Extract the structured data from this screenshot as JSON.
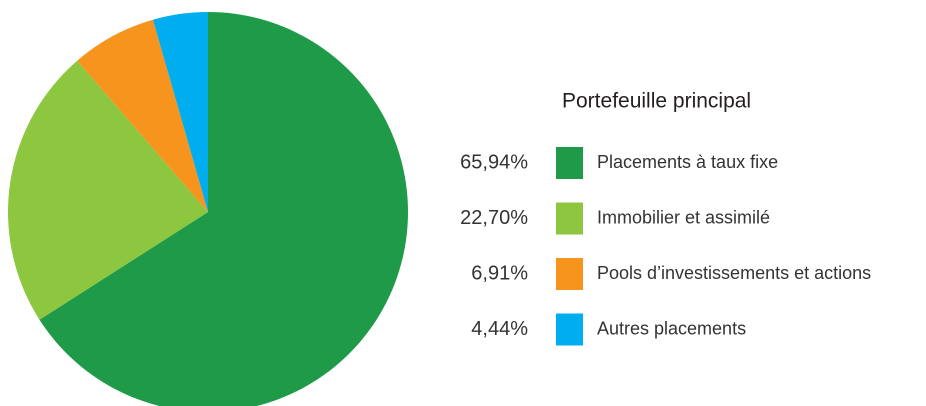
{
  "chart_data": {
    "type": "pie",
    "title": "Portefeuille principal",
    "categories": [
      "Placements à taux fixe",
      "Immobilier et assimilé",
      "Pools d’investissements et actions",
      "Autres placements"
    ],
    "values": [
      65.94,
      22.7,
      6.91,
      4.44
    ],
    "value_labels": [
      "65,94%",
      "22,70%",
      "6,91%",
      "4,44%"
    ],
    "colors": [
      "#1e9a48",
      "#8dc63f",
      "#f7941d",
      "#00aeef"
    ]
  }
}
